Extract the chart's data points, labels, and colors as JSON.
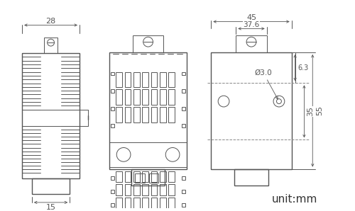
{
  "bg_color": "#ffffff",
  "lc": "#555555",
  "lc_thin": "#888888",
  "fig_width": 5.0,
  "fig_height": 2.98,
  "dpi": 100,
  "unit_text": "unit:mm",
  "dims": {
    "w28": "28",
    "w15": "15",
    "w45": "45",
    "w37_6": "37.6",
    "h55": "55",
    "h35": "35",
    "dia3": "Ø3.0",
    "h6_3": "6.3"
  }
}
